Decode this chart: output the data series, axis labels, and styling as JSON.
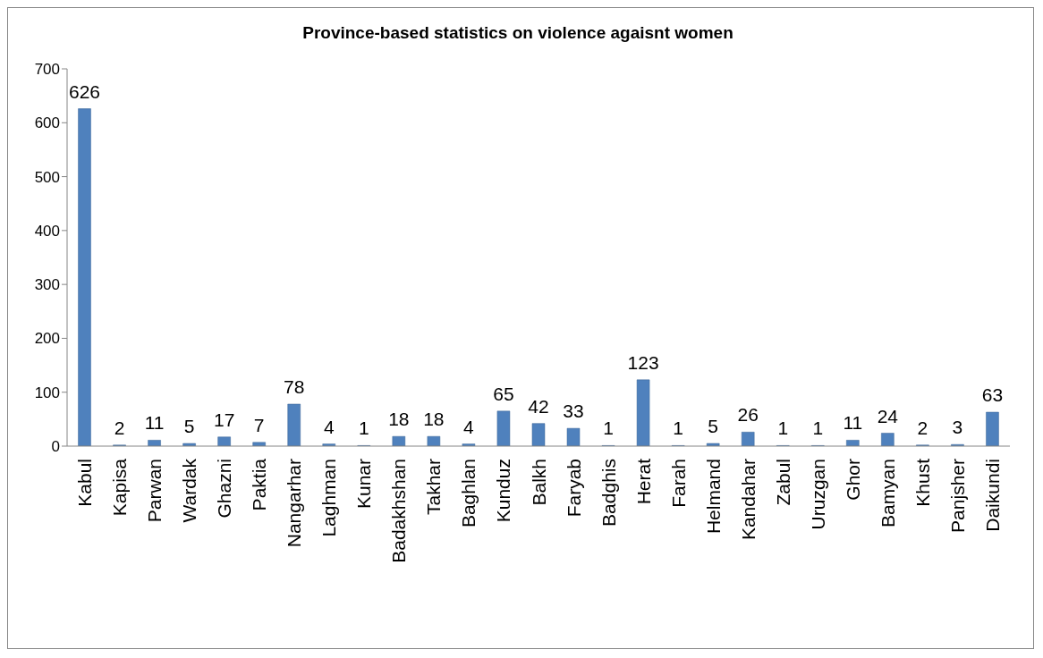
{
  "chart_data": {
    "type": "bar",
    "title": "Province-based statistics on violence agaisnt women",
    "categories": [
      "Kabul",
      "Kapisa",
      "Parwan",
      "Wardak",
      "Ghazni",
      "Paktia",
      "Nangarhar",
      "Laghman",
      "Kunar",
      "Badakhshan",
      "Takhar",
      "Baghlan",
      "Kunduz",
      "Balkh",
      "Faryab",
      "Badghis",
      "Herat",
      "Farah",
      "Helmand",
      "Kandahar",
      "Zabul",
      "Uruzgan",
      "Ghor",
      "Bamyan",
      "Khust",
      "Panjsher",
      "Daikundi"
    ],
    "values": [
      626,
      2,
      11,
      5,
      17,
      7,
      78,
      4,
      1,
      18,
      18,
      4,
      65,
      42,
      33,
      1,
      123,
      1,
      5,
      26,
      1,
      1,
      11,
      24,
      2,
      3,
      63
    ],
    "color": "#4f81bd",
    "ylim": [
      0,
      700
    ],
    "yticks": [
      0,
      100,
      200,
      300,
      400,
      500,
      600,
      700
    ],
    "data_labels": true
  }
}
